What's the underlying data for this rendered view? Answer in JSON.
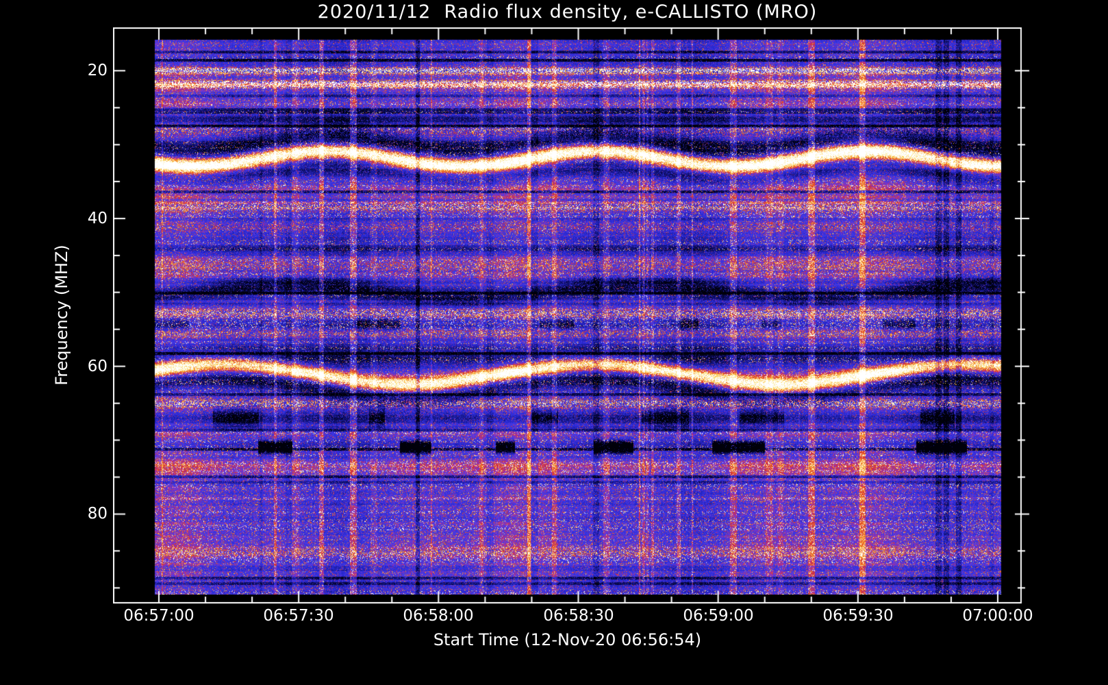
{
  "chart_data": {
    "type": "heatmap",
    "title": "2020/11/12  Radio flux density, e-CALLISTO (MRO)",
    "date": "2020/11/12",
    "instrument": "e-CALLISTO (MRO)",
    "xlabel": "Start Time (12-Nov-20 06:56:54)",
    "ylabel": "Frequency (MHZ)",
    "x_tick_labels": [
      "06:57:00",
      "06:57:30",
      "06:58:00",
      "06:58:30",
      "06:59:00",
      "06:59:30",
      "07:00:00"
    ],
    "y_tick_labels": [
      "20",
      "40",
      "60",
      "80"
    ],
    "y_tick_values": [
      20,
      40,
      60,
      80
    ],
    "freq_range_mhz": [
      15.8,
      90.9
    ],
    "time_start": "06:56:54",
    "time_axis_span_s": 186,
    "grid": false,
    "legend": "none",
    "colormap": [
      {
        "v": 0.0,
        "c": "#00000a"
      },
      {
        "v": 0.12,
        "c": "#0a0a50"
      },
      {
        "v": 0.3,
        "c": "#2828d2"
      },
      {
        "v": 0.45,
        "c": "#463ce6"
      },
      {
        "v": 0.55,
        "c": "#a032b4"
      },
      {
        "v": 0.63,
        "c": "#d72d2d"
      },
      {
        "v": 0.74,
        "c": "#f58228"
      },
      {
        "v": 0.85,
        "c": "#fcdc5a"
      },
      {
        "v": 1.0,
        "c": "#ffffff"
      }
    ],
    "features": [
      {
        "freq": 20.0,
        "sigma": 0.35,
        "amp": 0.5,
        "kind": "speckle"
      },
      {
        "freq": 21.8,
        "sigma": 0.3,
        "amp": 0.75,
        "kind": "speckle"
      },
      {
        "freq": 24.0,
        "sigma": 1.2,
        "amp": 0.15,
        "kind": "red"
      },
      {
        "freq": 26.6,
        "sigma": 0.7,
        "amp": -0.2,
        "kind": "dark"
      },
      {
        "freq": 28.2,
        "sigma": 0.5,
        "amp": 0.22,
        "kind": "red-speckle"
      },
      {
        "freq": 29.8,
        "sigma": 1.0,
        "amp": -0.32,
        "kind": "dark",
        "wave_amp": 1.0,
        "wave_period": 58,
        "phase": 0.7
      },
      {
        "freq": 31.9,
        "sigma": 0.75,
        "amp": 0.8,
        "kind": "bright",
        "wave_amp": 1.0,
        "wave_period": 58,
        "phase": 0.7
      },
      {
        "freq": 33.8,
        "sigma": 0.9,
        "amp": -0.18,
        "kind": "dark",
        "wave_amp": 1.0,
        "wave_period": 58,
        "phase": 0.7
      },
      {
        "freq": 36.2,
        "sigma": 1.6,
        "amp": 0.17,
        "kind": "red"
      },
      {
        "freq": 38.6,
        "sigma": 0.5,
        "amp": 0.22,
        "kind": "red-speckle"
      },
      {
        "freq": 41.2,
        "sigma": 0.5,
        "amp": 0.18,
        "kind": "red-speckle"
      },
      {
        "freq": 44.2,
        "sigma": 0.5,
        "amp": -0.14,
        "kind": "dark"
      },
      {
        "freq": 46.6,
        "sigma": 1.1,
        "amp": 0.16,
        "kind": "red-speckle"
      },
      {
        "freq": 49.9,
        "sigma": 0.9,
        "amp": -0.3,
        "kind": "dark",
        "wave_amp": 0.9,
        "wave_period": 75,
        "phase": 2.3
      },
      {
        "freq": 52.9,
        "sigma": 0.5,
        "amp": 0.26,
        "kind": "red-speckle"
      },
      {
        "freq": 54.3,
        "sigma": 0.6,
        "amp": -0.26,
        "kind": "dark-dash"
      },
      {
        "freq": 55.6,
        "sigma": 0.45,
        "amp": 0.22,
        "kind": "red-speckle"
      },
      {
        "freq": 58.6,
        "sigma": 0.9,
        "amp": -0.22,
        "kind": "dark"
      },
      {
        "freq": 61.1,
        "sigma": 0.7,
        "amp": 0.7,
        "kind": "bright",
        "wave_amp": 1.4,
        "wave_period": 80,
        "phase": 3.6
      },
      {
        "freq": 63.0,
        "sigma": 0.9,
        "amp": -0.26,
        "kind": "dark",
        "wave_amp": 1.4,
        "wave_period": 80,
        "phase": 3.6
      },
      {
        "freq": 65.0,
        "sigma": 0.6,
        "amp": 0.28,
        "kind": "red-speckle"
      },
      {
        "freq": 67.0,
        "sigma": 1.0,
        "amp": -0.3,
        "kind": "dark-dash"
      },
      {
        "freq": 69.2,
        "sigma": 0.5,
        "amp": 0.16,
        "kind": "red"
      },
      {
        "freq": 71.0,
        "sigma": 0.5,
        "amp": -0.55,
        "kind": "black-dash"
      },
      {
        "freq": 73.6,
        "sigma": 0.9,
        "amp": 0.13,
        "kind": "red"
      },
      {
        "freq": 80.5,
        "sigma": 9.0,
        "amp": 0.1,
        "kind": "red-diffuse"
      },
      {
        "freq": 85.2,
        "sigma": 0.45,
        "amp": 0.2,
        "kind": "red-speckle"
      }
    ]
  },
  "colors": {
    "background": "#000000",
    "frame": "#ffffff",
    "text": "#ffffff"
  }
}
